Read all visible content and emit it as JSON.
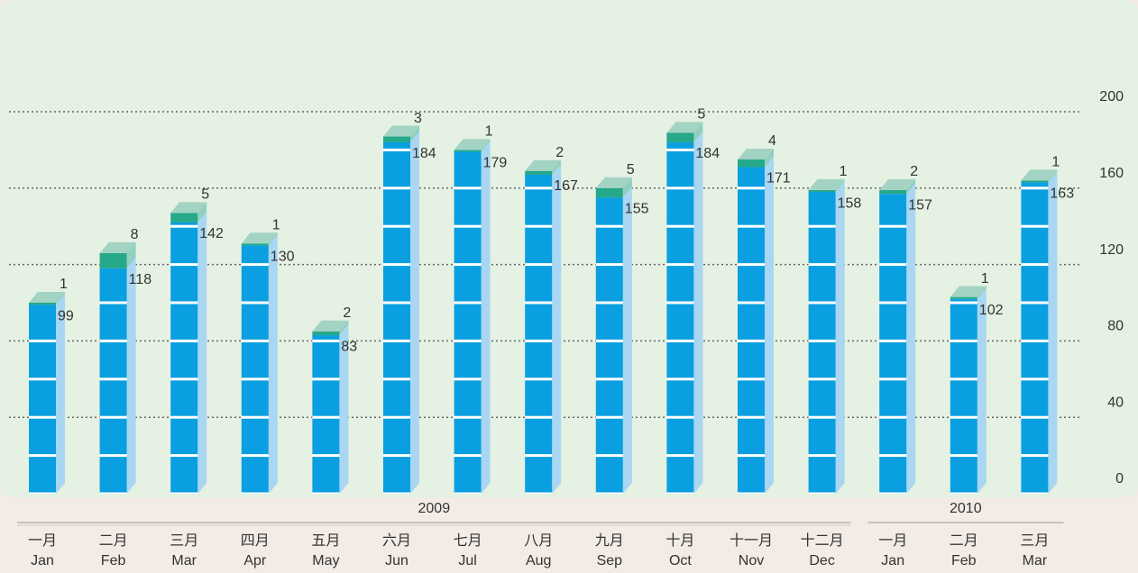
{
  "chart_data": {
    "type": "stacked_bar",
    "groups": [
      {
        "label": "2009",
        "categories": [
          {
            "zh": "一月",
            "en": "Jan"
          },
          {
            "zh": "二月",
            "en": "Feb"
          },
          {
            "zh": "三月",
            "en": "Mar"
          },
          {
            "zh": "四月",
            "en": "Apr"
          },
          {
            "zh": "五月",
            "en": "May"
          },
          {
            "zh": "六月",
            "en": "Jun"
          },
          {
            "zh": "七月",
            "en": "Jul"
          },
          {
            "zh": "八月",
            "en": "Aug"
          },
          {
            "zh": "九月",
            "en": "Sep"
          },
          {
            "zh": "十月",
            "en": "Oct"
          },
          {
            "zh": "十一月",
            "en": "Nov"
          },
          {
            "zh": "十二月",
            "en": "Dec"
          }
        ]
      },
      {
        "label": "2010",
        "categories": [
          {
            "zh": "一月",
            "en": "Jan"
          },
          {
            "zh": "二月",
            "en": "Feb"
          },
          {
            "zh": "三月",
            "en": "Mar"
          }
        ]
      }
    ],
    "series": [
      {
        "color": "#0a9fe0",
        "side_color": "#a9d6f2",
        "values": [
          99,
          118,
          142,
          130,
          83,
          184,
          179,
          167,
          155,
          184,
          171,
          158,
          157,
          102,
          163
        ]
      },
      {
        "color": "#26a88a",
        "side_color": "#8fd0bf",
        "values": [
          1,
          8,
          5,
          1,
          2,
          3,
          1,
          2,
          5,
          5,
          4,
          1,
          2,
          1,
          1
        ]
      }
    ],
    "ylim": [
      0,
      200
    ],
    "yticks": [
      0,
      40,
      80,
      120,
      160,
      200
    ],
    "grid": true
  }
}
